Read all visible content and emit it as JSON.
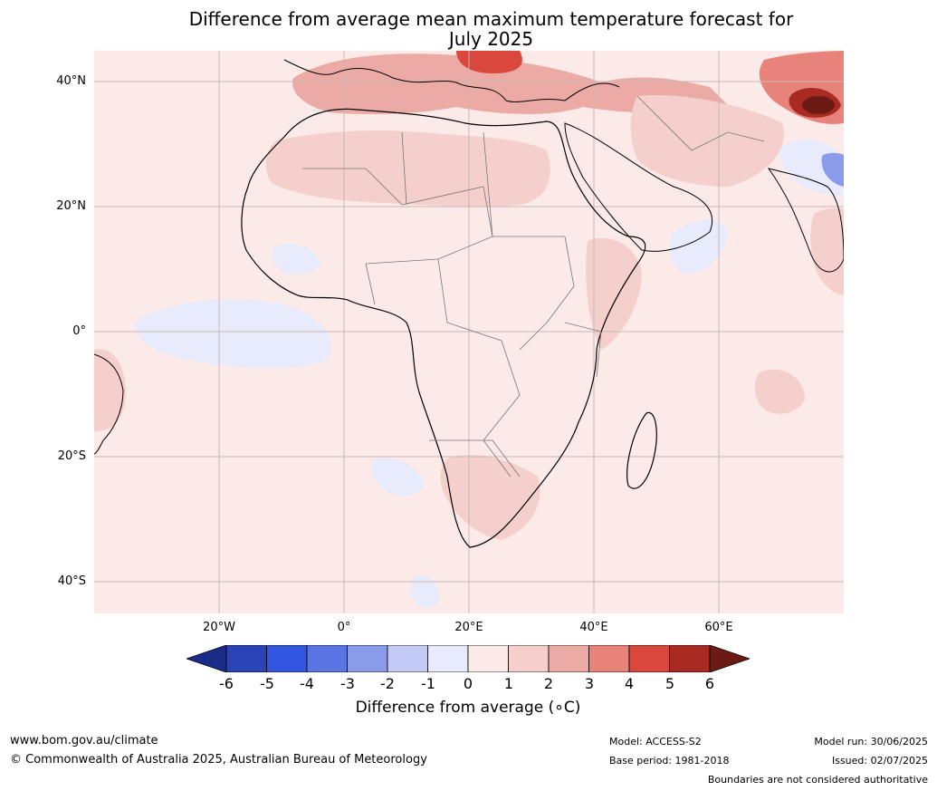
{
  "title": {
    "line1": "Difference from average mean maximum temperature forecast for",
    "line2": "July 2025"
  },
  "map": {
    "region": "Africa",
    "lat_labels": [
      "40°N",
      "20°N",
      "0°",
      "20°S",
      "40°S"
    ],
    "lon_labels": [
      "20°W",
      "0°",
      "20°E",
      "40°E",
      "60°E"
    ],
    "background_color": "#fbeae8"
  },
  "colorbar": {
    "ticks": [
      "-6",
      "-5",
      "-4",
      "-3",
      "-2",
      "-1",
      "0",
      "1",
      "2",
      "3",
      "4",
      "5",
      "6"
    ],
    "colors": [
      "#1b2b8a",
      "#2a44b6",
      "#3356e0",
      "#5b74e3",
      "#8a9ce9",
      "#c3cbf4",
      "#e8ebfb",
      "#fbeae8",
      "#f4cfcb",
      "#ecaaa4",
      "#e8837c",
      "#d9473d",
      "#a82a22",
      "#6b1b14"
    ],
    "label": "Difference from average (∘C)"
  },
  "footer": {
    "website": "www.bom.gov.au/climate",
    "copyright": "© Commonwealth of Australia 2025, Australian Bureau of Meteorology",
    "model": "Model: ACCESS-S2",
    "base_period": "Base period: 1981-2018",
    "model_run": "Model run: 30/06/2025",
    "issued": "Issued: 02/07/2025",
    "disclaimer": "Boundaries are not considered authoritative"
  }
}
